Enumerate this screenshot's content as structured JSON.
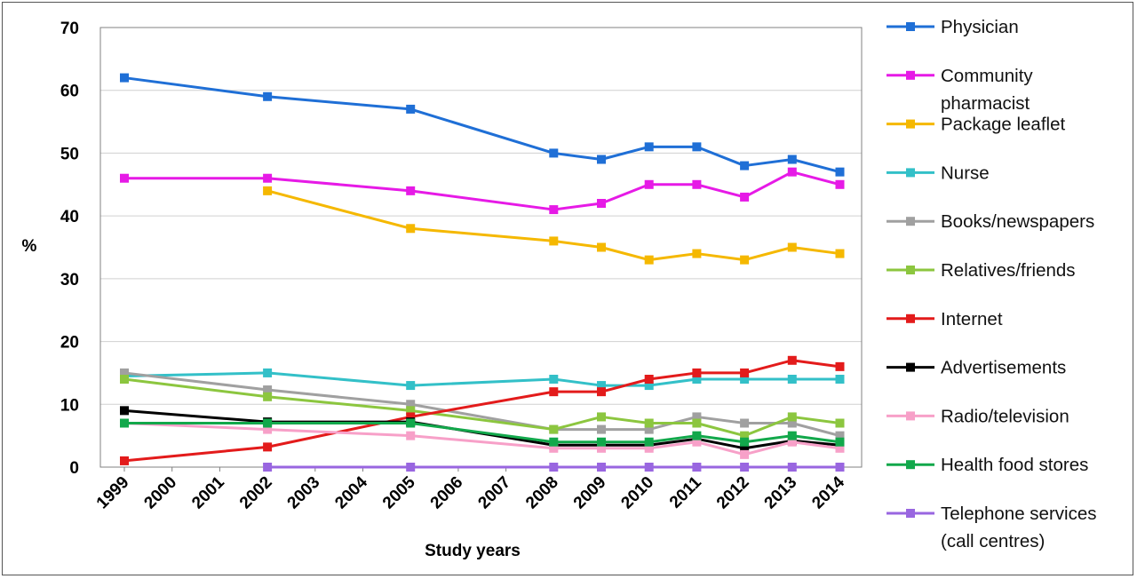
{
  "chart_data": {
    "type": "line",
    "title": "",
    "xlabel": "Study years",
    "ylabel": "%",
    "ylim": [
      0,
      70
    ],
    "yticks": [
      0,
      10,
      20,
      30,
      40,
      50,
      60,
      70
    ],
    "xticks": [
      "1999",
      "2000",
      "2001",
      "2002",
      "2003",
      "2004",
      "2005",
      "2006",
      "2007",
      "2008",
      "2009",
      "2010",
      "2011",
      "2012",
      "2013",
      "2014"
    ],
    "grid": true,
    "legend_position": "right",
    "series": [
      {
        "name": "Physician",
        "color": "#1F6FD6",
        "x": [
          1999,
          2002,
          2005,
          2008,
          2009,
          2010,
          2011,
          2012,
          2013,
          2014
        ],
        "values": [
          62,
          59,
          57,
          50,
          49,
          51,
          51,
          48,
          49,
          47
        ]
      },
      {
        "name": "Community pharmacist",
        "legend_lines": [
          "Community",
          "pharmacist"
        ],
        "color": "#E61AE6",
        "x": [
          1999,
          2002,
          2005,
          2008,
          2009,
          2010,
          2011,
          2012,
          2013,
          2014
        ],
        "values": [
          46,
          46,
          44,
          41,
          42,
          45,
          45,
          43,
          47,
          45
        ]
      },
      {
        "name": "Package leaflet",
        "color": "#F5B800",
        "x": [
          2002,
          2005,
          2008,
          2009,
          2010,
          2011,
          2012,
          2013,
          2014
        ],
        "values": [
          44,
          38,
          36,
          35,
          33,
          34,
          33,
          35,
          34
        ]
      },
      {
        "name": "Nurse",
        "color": "#33C0C8",
        "x": [
          1999,
          2002,
          2005,
          2008,
          2009,
          2010,
          2011,
          2012,
          2013,
          2014
        ],
        "values": [
          14.5,
          15,
          13,
          14,
          13,
          13,
          14,
          14,
          14,
          14
        ]
      },
      {
        "name": "Books/newspapers",
        "color": "#A0A0A0",
        "x": [
          1999,
          2002,
          2005,
          2008,
          2009,
          2010,
          2011,
          2012,
          2013,
          2014
        ],
        "values": [
          15,
          12.3,
          10,
          6,
          6,
          6,
          8,
          7,
          7,
          5
        ]
      },
      {
        "name": "Relatives/friends",
        "color": "#8CC63F",
        "x": [
          1999,
          2002,
          2005,
          2008,
          2009,
          2010,
          2011,
          2012,
          2013,
          2014
        ],
        "values": [
          14,
          11.2,
          9,
          6,
          8,
          7,
          7,
          5,
          8,
          7
        ]
      },
      {
        "name": "Internet",
        "color": "#E31B1B",
        "x": [
          1999,
          2002,
          2005,
          2008,
          2009,
          2010,
          2011,
          2012,
          2013,
          2014
        ],
        "values": [
          1,
          3.2,
          8,
          12,
          12,
          14,
          15,
          15,
          17,
          16
        ]
      },
      {
        "name": "Advertisements",
        "color": "#000000",
        "x": [
          1999,
          2002,
          2005,
          2008,
          2009,
          2010,
          2011,
          2012,
          2013,
          2014
        ],
        "values": [
          9,
          7.2,
          7.2,
          3.5,
          3.5,
          3.5,
          4.5,
          3,
          4.2,
          3.5
        ]
      },
      {
        "name": "Radio/television",
        "color": "#F7A0C8",
        "x": [
          1999,
          2002,
          2005,
          2008,
          2009,
          2010,
          2011,
          2012,
          2013,
          2014
        ],
        "values": [
          7,
          6,
          5,
          3,
          3,
          3,
          4,
          2,
          4,
          3
        ]
      },
      {
        "name": "Health food stores",
        "color": "#12A84B",
        "x": [
          1999,
          2002,
          2005,
          2008,
          2009,
          2010,
          2011,
          2012,
          2013,
          2014
        ],
        "values": [
          7,
          7,
          7,
          4,
          4,
          4,
          5,
          4,
          5,
          4
        ]
      },
      {
        "name": "Telephone services (call centres)",
        "legend_lines": [
          "Telephone services",
          "(call centres)"
        ],
        "color": "#9966E0",
        "x": [
          2002,
          2005,
          2008,
          2009,
          2010,
          2011,
          2012,
          2013,
          2014
        ],
        "values": [
          0,
          0,
          0,
          0,
          0,
          0,
          0,
          0,
          0
        ]
      }
    ]
  }
}
